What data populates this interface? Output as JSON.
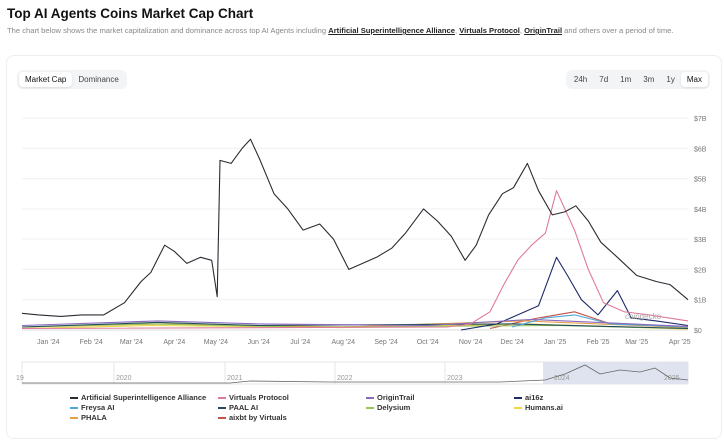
{
  "title": "Top AI Agents Coins Market Cap Chart",
  "description": {
    "pre": "The chart below shows the market capitalization and dominance across top AI Agents including ",
    "links": [
      "Artificial Superintelligence Alliance",
      "Virtuals Protocol",
      "OriginTrail"
    ],
    "post": " and others over a period of time."
  },
  "tabs": [
    {
      "label": "Market Cap",
      "active": true
    },
    {
      "label": "Dominance",
      "active": false
    }
  ],
  "ranges": [
    {
      "label": "24h"
    },
    {
      "label": "7d"
    },
    {
      "label": "1m"
    },
    {
      "label": "3m"
    },
    {
      "label": "1y"
    },
    {
      "label": "Max",
      "active": true
    }
  ],
  "watermark": "coingecko",
  "navigator": {
    "years": [
      "19",
      "2020",
      "2021",
      "2022",
      "2023",
      "2024",
      "2025"
    ]
  },
  "chart_data": {
    "type": "line",
    "xlim": [
      "2023-12-13",
      "2025-04-07"
    ],
    "ylim": [
      0,
      7
    ],
    "y_ticks": [
      "$0",
      "$1B",
      "$2B",
      "$3B",
      "$4B",
      "$5B",
      "$6B",
      "$7B"
    ],
    "x_ticks": [
      [
        "2024-01-01",
        "Jan '24"
      ],
      [
        "2024-02-01",
        "Feb '24"
      ],
      [
        "2024-03-01",
        "Mar '24"
      ],
      [
        "2024-04-01",
        "Apr '24"
      ],
      [
        "2024-05-01",
        "May '24"
      ],
      [
        "2024-06-01",
        "Jun '24"
      ],
      [
        "2024-07-01",
        "Jul '24"
      ],
      [
        "2024-08-01",
        "Aug '24"
      ],
      [
        "2024-09-01",
        "Sep '24"
      ],
      [
        "2024-10-01",
        "Oct '24"
      ],
      [
        "2024-11-01",
        "Nov '24"
      ],
      [
        "2024-12-01",
        "Dec '24"
      ],
      [
        "2025-01-01",
        "Jan '25"
      ],
      [
        "2025-02-01",
        "Feb '25"
      ],
      [
        "2025-03-01",
        "Mar '25"
      ],
      [
        "2025-04-01",
        "Apr '25"
      ]
    ],
    "grid": true,
    "legend_position": "bottom",
    "series": [
      {
        "name": "Artificial Superintelligence Alliance",
        "color": "#2b2b33",
        "points": [
          [
            "2023-12-13",
            0.55
          ],
          [
            "2023-12-25",
            0.5
          ],
          [
            "2024-01-10",
            0.45
          ],
          [
            "2024-01-25",
            0.5
          ],
          [
            "2024-02-10",
            0.5
          ],
          [
            "2024-02-25",
            0.9
          ],
          [
            "2024-03-08",
            1.6
          ],
          [
            "2024-03-15",
            1.9
          ],
          [
            "2024-03-25",
            2.8
          ],
          [
            "2024-04-01",
            2.6
          ],
          [
            "2024-04-10",
            2.2
          ],
          [
            "2024-04-20",
            2.4
          ],
          [
            "2024-04-28",
            2.3
          ],
          [
            "2024-05-02",
            1.1
          ],
          [
            "2024-05-04",
            5.6
          ],
          [
            "2024-05-12",
            5.5
          ],
          [
            "2024-05-20",
            6.0
          ],
          [
            "2024-05-26",
            6.3
          ],
          [
            "2024-06-02",
            5.6
          ],
          [
            "2024-06-12",
            4.5
          ],
          [
            "2024-06-22",
            4.0
          ],
          [
            "2024-07-03",
            3.3
          ],
          [
            "2024-07-15",
            3.5
          ],
          [
            "2024-07-25",
            3.0
          ],
          [
            "2024-08-05",
            2.0
          ],
          [
            "2024-08-15",
            2.2
          ],
          [
            "2024-08-25",
            2.4
          ],
          [
            "2024-09-05",
            2.7
          ],
          [
            "2024-09-15",
            3.2
          ],
          [
            "2024-09-28",
            4.0
          ],
          [
            "2024-10-08",
            3.6
          ],
          [
            "2024-10-18",
            3.1
          ],
          [
            "2024-10-28",
            2.3
          ],
          [
            "2024-11-05",
            2.8
          ],
          [
            "2024-11-14",
            3.8
          ],
          [
            "2024-11-24",
            4.5
          ],
          [
            "2024-12-02",
            4.7
          ],
          [
            "2024-12-12",
            5.5
          ],
          [
            "2024-12-20",
            4.6
          ],
          [
            "2024-12-30",
            3.8
          ],
          [
            "2025-01-08",
            3.9
          ],
          [
            "2025-01-16",
            4.1
          ],
          [
            "2025-01-25",
            3.6
          ],
          [
            "2025-02-03",
            2.9
          ],
          [
            "2025-02-15",
            2.4
          ],
          [
            "2025-03-01",
            1.8
          ],
          [
            "2025-03-15",
            1.6
          ],
          [
            "2025-03-25",
            1.5
          ],
          [
            "2025-04-07",
            1.0
          ]
        ]
      },
      {
        "name": "Virtuals Protocol",
        "color": "#e07a9a",
        "points": [
          [
            "2023-12-13",
            0.05
          ],
          [
            "2024-10-15",
            0.1
          ],
          [
            "2024-11-01",
            0.2
          ],
          [
            "2024-11-15",
            0.6
          ],
          [
            "2024-11-25",
            1.5
          ],
          [
            "2024-12-05",
            2.3
          ],
          [
            "2024-12-15",
            2.8
          ],
          [
            "2024-12-25",
            3.2
          ],
          [
            "2025-01-02",
            4.6
          ],
          [
            "2025-01-08",
            4.0
          ],
          [
            "2025-01-15",
            3.3
          ],
          [
            "2025-01-25",
            2.0
          ],
          [
            "2025-02-05",
            0.9
          ],
          [
            "2025-02-20",
            0.6
          ],
          [
            "2025-03-10",
            0.5
          ],
          [
            "2025-04-07",
            0.3
          ]
        ]
      },
      {
        "name": "OriginTrail",
        "color": "#8a6bbf",
        "points": [
          [
            "2023-12-13",
            0.15
          ],
          [
            "2024-03-20",
            0.3
          ],
          [
            "2024-06-01",
            0.2
          ],
          [
            "2024-10-01",
            0.15
          ],
          [
            "2024-12-15",
            0.35
          ],
          [
            "2025-02-01",
            0.25
          ],
          [
            "2025-04-07",
            0.12
          ]
        ]
      },
      {
        "name": "ai16z",
        "color": "#1f2a6b",
        "points": [
          [
            "2024-10-25",
            0.0
          ],
          [
            "2024-11-20",
            0.2
          ],
          [
            "2024-12-05",
            0.5
          ],
          [
            "2024-12-20",
            0.8
          ],
          [
            "2025-01-02",
            2.4
          ],
          [
            "2025-01-10",
            1.8
          ],
          [
            "2025-01-20",
            1.0
          ],
          [
            "2025-02-01",
            0.5
          ],
          [
            "2025-02-15",
            1.3
          ],
          [
            "2025-02-25",
            0.4
          ],
          [
            "2025-03-15",
            0.3
          ],
          [
            "2025-04-07",
            0.15
          ]
        ]
      },
      {
        "name": "Freysa AI",
        "color": "#4aa8d8",
        "points": [
          [
            "2024-12-01",
            0.1
          ],
          [
            "2024-12-25",
            0.4
          ],
          [
            "2025-01-15",
            0.5
          ],
          [
            "2025-02-10",
            0.2
          ],
          [
            "2025-04-07",
            0.1
          ]
        ]
      },
      {
        "name": "PAAL AI",
        "color": "#1f4e5a",
        "points": [
          [
            "2023-12-13",
            0.1
          ],
          [
            "2024-03-20",
            0.25
          ],
          [
            "2024-06-01",
            0.15
          ],
          [
            "2024-12-01",
            0.2
          ],
          [
            "2025-04-07",
            0.05
          ]
        ]
      },
      {
        "name": "Delysium",
        "color": "#9bc25a",
        "points": [
          [
            "2023-12-13",
            0.1
          ],
          [
            "2024-03-15",
            0.2
          ],
          [
            "2024-07-01",
            0.1
          ],
          [
            "2025-01-01",
            0.15
          ],
          [
            "2025-04-07",
            0.05
          ]
        ]
      },
      {
        "name": "Humans.ai",
        "color": "#e8d84a",
        "points": [
          [
            "2023-12-13",
            0.05
          ],
          [
            "2024-03-15",
            0.15
          ],
          [
            "2024-08-01",
            0.08
          ],
          [
            "2024-12-10",
            0.2
          ],
          [
            "2025-04-07",
            0.03
          ]
        ]
      },
      {
        "name": "PHALA",
        "color": "#e8a04a",
        "points": [
          [
            "2023-12-13",
            0.1
          ],
          [
            "2024-03-25",
            0.2
          ],
          [
            "2024-08-01",
            0.1
          ],
          [
            "2024-12-10",
            0.3
          ],
          [
            "2025-02-01",
            0.2
          ],
          [
            "2025-04-07",
            0.08
          ]
        ]
      },
      {
        "name": "aixbt by Virtuals",
        "color": "#c5534a",
        "points": [
          [
            "2024-11-15",
            0.05
          ],
          [
            "2024-12-20",
            0.4
          ],
          [
            "2025-01-15",
            0.6
          ],
          [
            "2025-02-10",
            0.2
          ],
          [
            "2025-04-07",
            0.1
          ]
        ]
      }
    ]
  }
}
